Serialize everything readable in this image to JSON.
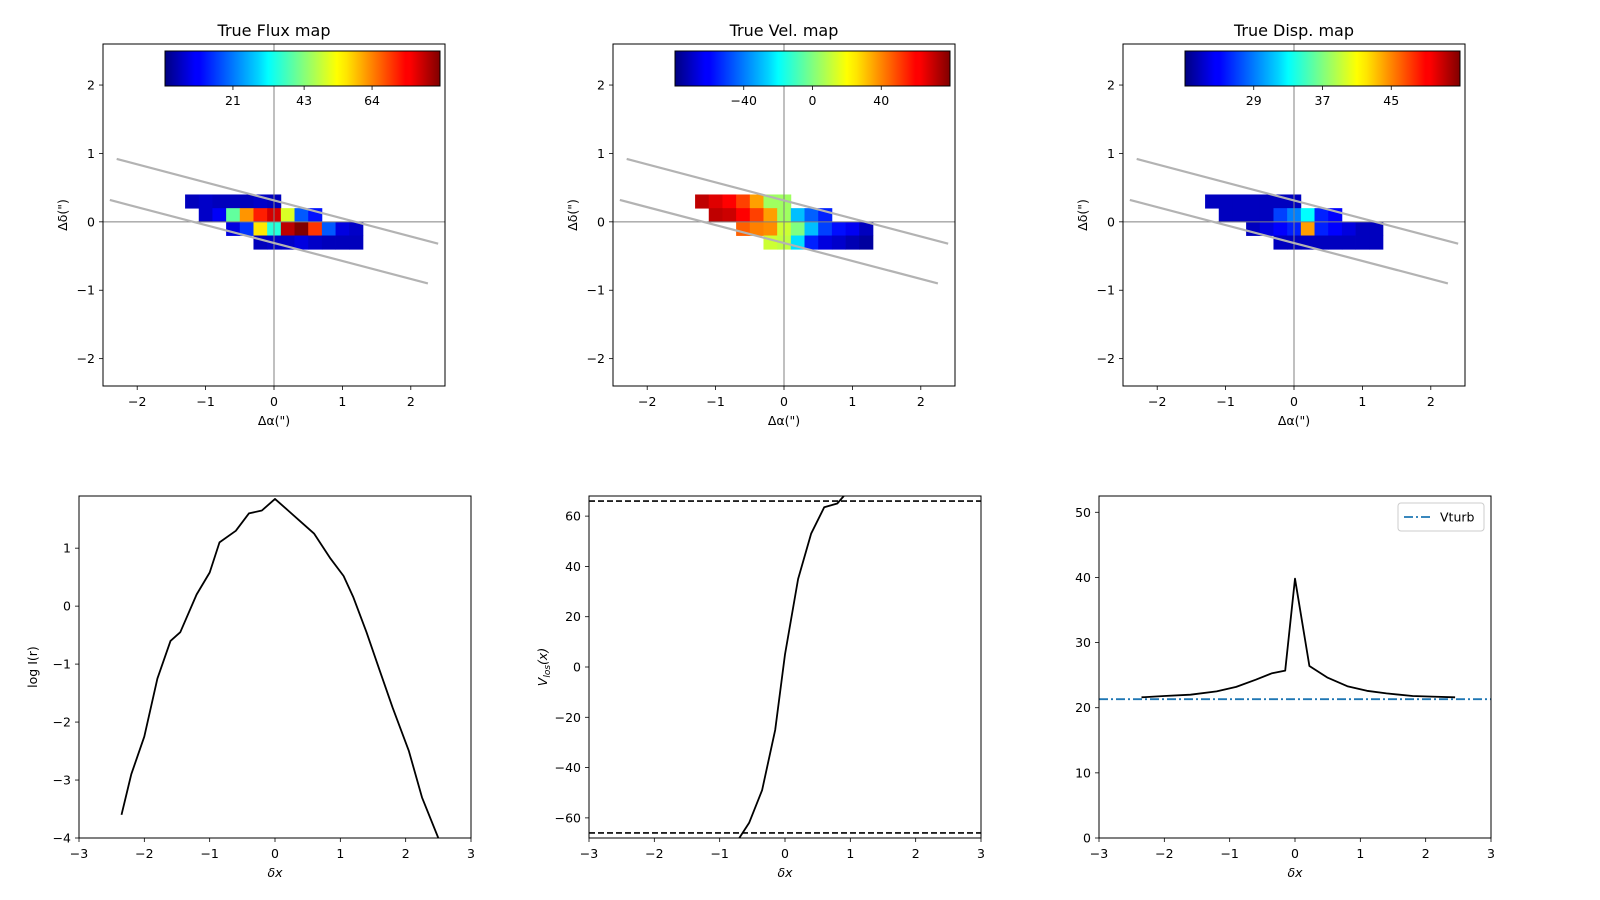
{
  "chart_data": [
    {
      "type": "heatmap",
      "title": "True Flux map",
      "xlabel": "Δα(\")",
      "ylabel": "Δδ(\")",
      "xlim": [
        -2.5,
        2.5
      ],
      "ylim": [
        -2.4,
        2.6
      ],
      "xticks": [
        -2,
        -1,
        0,
        1,
        2
      ],
      "yticks": [
        -2,
        -1,
        0,
        1,
        2
      ],
      "colorbar": {
        "colormap": "jet",
        "range": [
          0,
          85
        ],
        "ticks": [
          21,
          43,
          64
        ]
      },
      "pixel_size": 0.2,
      "rows": [
        {
          "y": 0.3,
          "x0": -1.3,
          "values": [
            5,
            6,
            5,
            5,
            5,
            6,
            5
          ]
        },
        {
          "y": 0.1,
          "x0": -1.1,
          "values": [
            6,
            10,
            40,
            62,
            72,
            78,
            50,
            18,
            12
          ]
        },
        {
          "y": -0.1,
          "x0": -0.7,
          "values": [
            8,
            15,
            55,
            35,
            80,
            85,
            70,
            18,
            8,
            6
          ]
        },
        {
          "y": -0.3,
          "x0": -0.3,
          "values": [
            5,
            6,
            6,
            8,
            6,
            5,
            5,
            5
          ]
        }
      ],
      "slit_lines": [
        {
          "from": [
            -2.3,
            0.92
          ],
          "to": [
            2.4,
            -0.32
          ]
        },
        {
          "from": [
            -2.4,
            0.32
          ],
          "to": [
            2.25,
            -0.9
          ]
        }
      ]
    },
    {
      "type": "heatmap",
      "title": "True Vel. map",
      "xlabel": "Δα(\")",
      "ylabel": "Δδ(\")",
      "xlim": [
        -2.5,
        2.5
      ],
      "ylim": [
        -2.4,
        2.6
      ],
      "xticks": [
        -2,
        -1,
        0,
        1,
        2
      ],
      "yticks": [
        -2,
        -1,
        0,
        1,
        2
      ],
      "colorbar": {
        "colormap": "jet",
        "range": [
          -80,
          80
        ],
        "ticks": [
          -40,
          0,
          40
        ]
      },
      "pixel_size": 0.2,
      "rows": [
        {
          "y": 0.3,
          "x0": -1.3,
          "values": [
            70,
            65,
            60,
            50,
            35,
            5,
            5
          ]
        },
        {
          "y": 0.1,
          "x0": -1.1,
          "values": [
            70,
            68,
            60,
            50,
            35,
            5,
            -30,
            -45,
            -55
          ]
        },
        {
          "y": -0.1,
          "x0": -0.7,
          "values": [
            45,
            40,
            38,
            12,
            0,
            -30,
            -50,
            -58,
            -62,
            -70
          ]
        },
        {
          "y": -0.3,
          "x0": -0.3,
          "values": [
            12,
            10,
            -25,
            -55,
            -65,
            -68,
            -72,
            -75
          ]
        }
      ],
      "slit_lines": [
        {
          "from": [
            -2.3,
            0.92
          ],
          "to": [
            2.4,
            -0.32
          ]
        },
        {
          "from": [
            -2.4,
            0.32
          ],
          "to": [
            2.25,
            -0.9
          ]
        }
      ]
    },
    {
      "type": "heatmap",
      "title": "True Disp. map",
      "xlabel": "Δα(\")",
      "ylabel": "Δδ(\")",
      "xlim": [
        -2.5,
        2.5
      ],
      "ylim": [
        -2.4,
        2.6
      ],
      "xticks": [
        -2,
        -1,
        0,
        1,
        2
      ],
      "yticks": [
        -2,
        -1,
        0,
        1,
        2
      ],
      "colorbar": {
        "colormap": "jet",
        "range": [
          21,
          53
        ],
        "ticks": [
          29,
          37,
          45
        ]
      },
      "pixel_size": 0.2,
      "rows": [
        {
          "y": 0.3,
          "x0": -1.3,
          "values": [
            23,
            23,
            23,
            23,
            23,
            23,
            23
          ]
        },
        {
          "y": 0.1,
          "x0": -1.1,
          "values": [
            23,
            23,
            23,
            23,
            27,
            29,
            33,
            26,
            25
          ]
        },
        {
          "y": -0.1,
          "x0": -0.7,
          "values": [
            23,
            24,
            25,
            26,
            44,
            26,
            25,
            24,
            23,
            23
          ]
        },
        {
          "y": -0.3,
          "x0": -0.3,
          "values": [
            23,
            23,
            23,
            23,
            23,
            23,
            23,
            23
          ]
        }
      ],
      "slit_lines": [
        {
          "from": [
            -2.3,
            0.92
          ],
          "to": [
            2.4,
            -0.32
          ]
        },
        {
          "from": [
            -2.4,
            0.32
          ],
          "to": [
            2.25,
            -0.9
          ]
        }
      ]
    },
    {
      "type": "line",
      "xlabel": "δx",
      "ylabel": "log I(r)",
      "xlim": [
        -3,
        3
      ],
      "ylim": [
        -4,
        1.9
      ],
      "xticks": [
        -3,
        -2,
        -1,
        0,
        1,
        2,
        3
      ],
      "yticks": [
        -4,
        -3,
        -2,
        -1,
        0,
        1
      ],
      "series": [
        {
          "color": "#000000",
          "x": [
            -2.35,
            -2.2,
            -2.0,
            -1.8,
            -1.6,
            -1.45,
            -1.2,
            -1.0,
            -0.85,
            -0.6,
            -0.4,
            -0.2,
            0.0,
            0.2,
            0.4,
            0.6,
            0.85,
            1.05,
            1.2,
            1.4,
            1.6,
            1.8,
            2.05,
            2.25,
            2.5
          ],
          "y": [
            -3.6,
            -2.9,
            -2.25,
            -1.25,
            -0.6,
            -0.45,
            0.2,
            0.58,
            1.1,
            1.3,
            1.6,
            1.65,
            1.85,
            1.65,
            1.45,
            1.25,
            0.82,
            0.52,
            0.15,
            -0.45,
            -1.1,
            -1.75,
            -2.5,
            -3.3,
            -4.0
          ]
        }
      ]
    },
    {
      "type": "line",
      "xlabel": "δx",
      "ylabel": "V_los(x)",
      "xlim": [
        -3,
        3
      ],
      "ylim": [
        -68,
        68
      ],
      "xticks": [
        -3,
        -2,
        -1,
        0,
        1,
        2,
        3
      ],
      "yticks": [
        -60,
        -40,
        -20,
        0,
        20,
        40,
        60
      ],
      "series": [
        {
          "color": "#000000",
          "x": [
            -0.7,
            -0.55,
            -0.35,
            -0.15,
            0.0,
            0.2,
            0.4,
            0.6,
            0.8,
            0.9
          ],
          "y": [
            -68,
            -62,
            -49,
            -25,
            5,
            35,
            53,
            63.5,
            65,
            68
          ]
        }
      ],
      "reference_lines": [
        {
          "y": 66,
          "style": "dashed",
          "color": "#000000"
        },
        {
          "y": -66,
          "style": "dashed",
          "color": "#000000"
        }
      ]
    },
    {
      "type": "line",
      "xlabel": "δx",
      "ylabel": "",
      "xlim": [
        -3,
        3
      ],
      "ylim": [
        0,
        52.5
      ],
      "xticks": [
        -3,
        -2,
        -1,
        0,
        1,
        2,
        3
      ],
      "yticks": [
        0,
        10,
        20,
        30,
        40,
        50
      ],
      "legend": {
        "position": "top-right",
        "entries": [
          "Vturb"
        ]
      },
      "series": [
        {
          "color": "#000000",
          "x": [
            -2.35,
            -2.0,
            -1.6,
            -1.2,
            -0.9,
            -0.6,
            -0.35,
            -0.15,
            0.0,
            0.22,
            0.5,
            0.8,
            1.1,
            1.4,
            1.8,
            2.1,
            2.45
          ],
          "y": [
            21.6,
            21.8,
            22.0,
            22.5,
            23.2,
            24.3,
            25.3,
            25.7,
            39.8,
            26.4,
            24.6,
            23.3,
            22.6,
            22.2,
            21.8,
            21.7,
            21.6
          ]
        },
        {
          "name": "Vturb",
          "color": "#1f77b4",
          "style": "dashdot",
          "x": [
            -3,
            3
          ],
          "y": [
            21.3,
            21.3
          ]
        }
      ]
    }
  ]
}
